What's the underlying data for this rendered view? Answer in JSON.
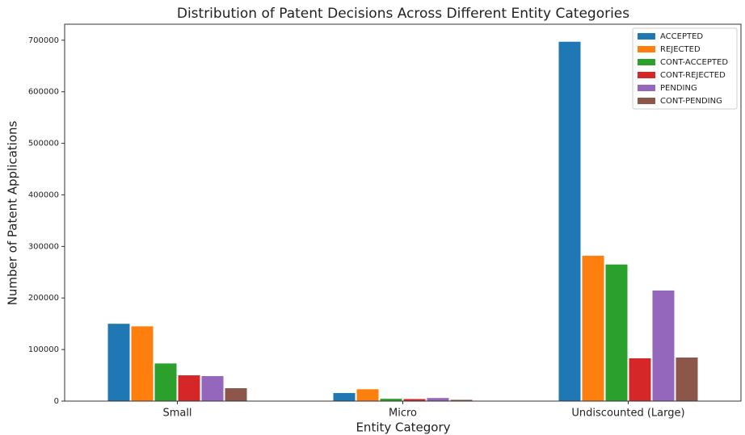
{
  "chart_data": {
    "type": "bar",
    "title": "Distribution of Patent Decisions Across Different Entity Categories",
    "x_label": "Entity Category",
    "y_label": "Number of Patent Applications",
    "categories": [
      "Small",
      "Micro",
      "Undiscounted (Large)"
    ],
    "series": [
      {
        "name": "ACCEPTED",
        "color": "#1f77b4",
        "values": [
          150000,
          15600,
          697000
        ]
      },
      {
        "name": "REJECTED",
        "color": "#ff7f0e",
        "values": [
          145000,
          23000,
          282000
        ]
      },
      {
        "name": "CONT-ACCEPTED",
        "color": "#2ca02c",
        "values": [
          73000,
          4500,
          265000
        ]
      },
      {
        "name": "CONT-REJECTED",
        "color": "#d62728",
        "values": [
          50000,
          4000,
          83000
        ]
      },
      {
        "name": "PENDING",
        "color": "#9467bd",
        "values": [
          48500,
          6000,
          214500
        ]
      },
      {
        "name": "CONT-PENDING",
        "color": "#8c564b",
        "values": [
          25000,
          2500,
          84500
        ]
      }
    ],
    "ylim": [
      0,
      731000
    ],
    "yticks": [
      0,
      100000,
      200000,
      300000,
      400000,
      500000,
      600000,
      700000
    ],
    "legend": "upper right"
  }
}
